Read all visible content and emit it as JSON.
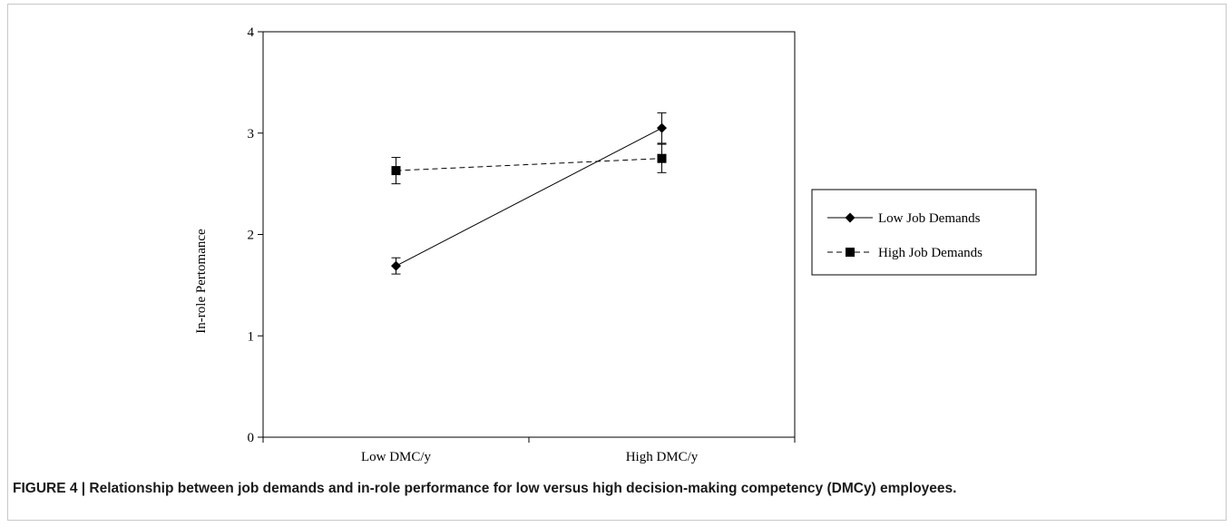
{
  "caption": "FIGURE 4 | Relationship between job demands and in-role performance for low versus high decision-making competency (DMCy) employees.",
  "chart_data": {
    "type": "line",
    "title": "",
    "xlabel": "",
    "ylabel": "In-role Pertomance",
    "categories": [
      "Low DMC/y",
      "High DMC/y"
    ],
    "ylim": [
      0,
      4
    ],
    "yticks": [
      "0",
      "1",
      "2",
      "3",
      "4"
    ],
    "grid": false,
    "legend_position": "right",
    "series": [
      {
        "name": "Low Job Demands",
        "values": [
          1.69,
          3.05
        ],
        "error": [
          0.08,
          0.15
        ],
        "marker": "diamond",
        "line": "solid",
        "color": "#000000"
      },
      {
        "name": "High Job Demands",
        "values": [
          2.63,
          2.75
        ],
        "error": [
          0.13,
          0.14
        ],
        "marker": "square",
        "line": "dashed",
        "color": "#000000"
      }
    ]
  }
}
